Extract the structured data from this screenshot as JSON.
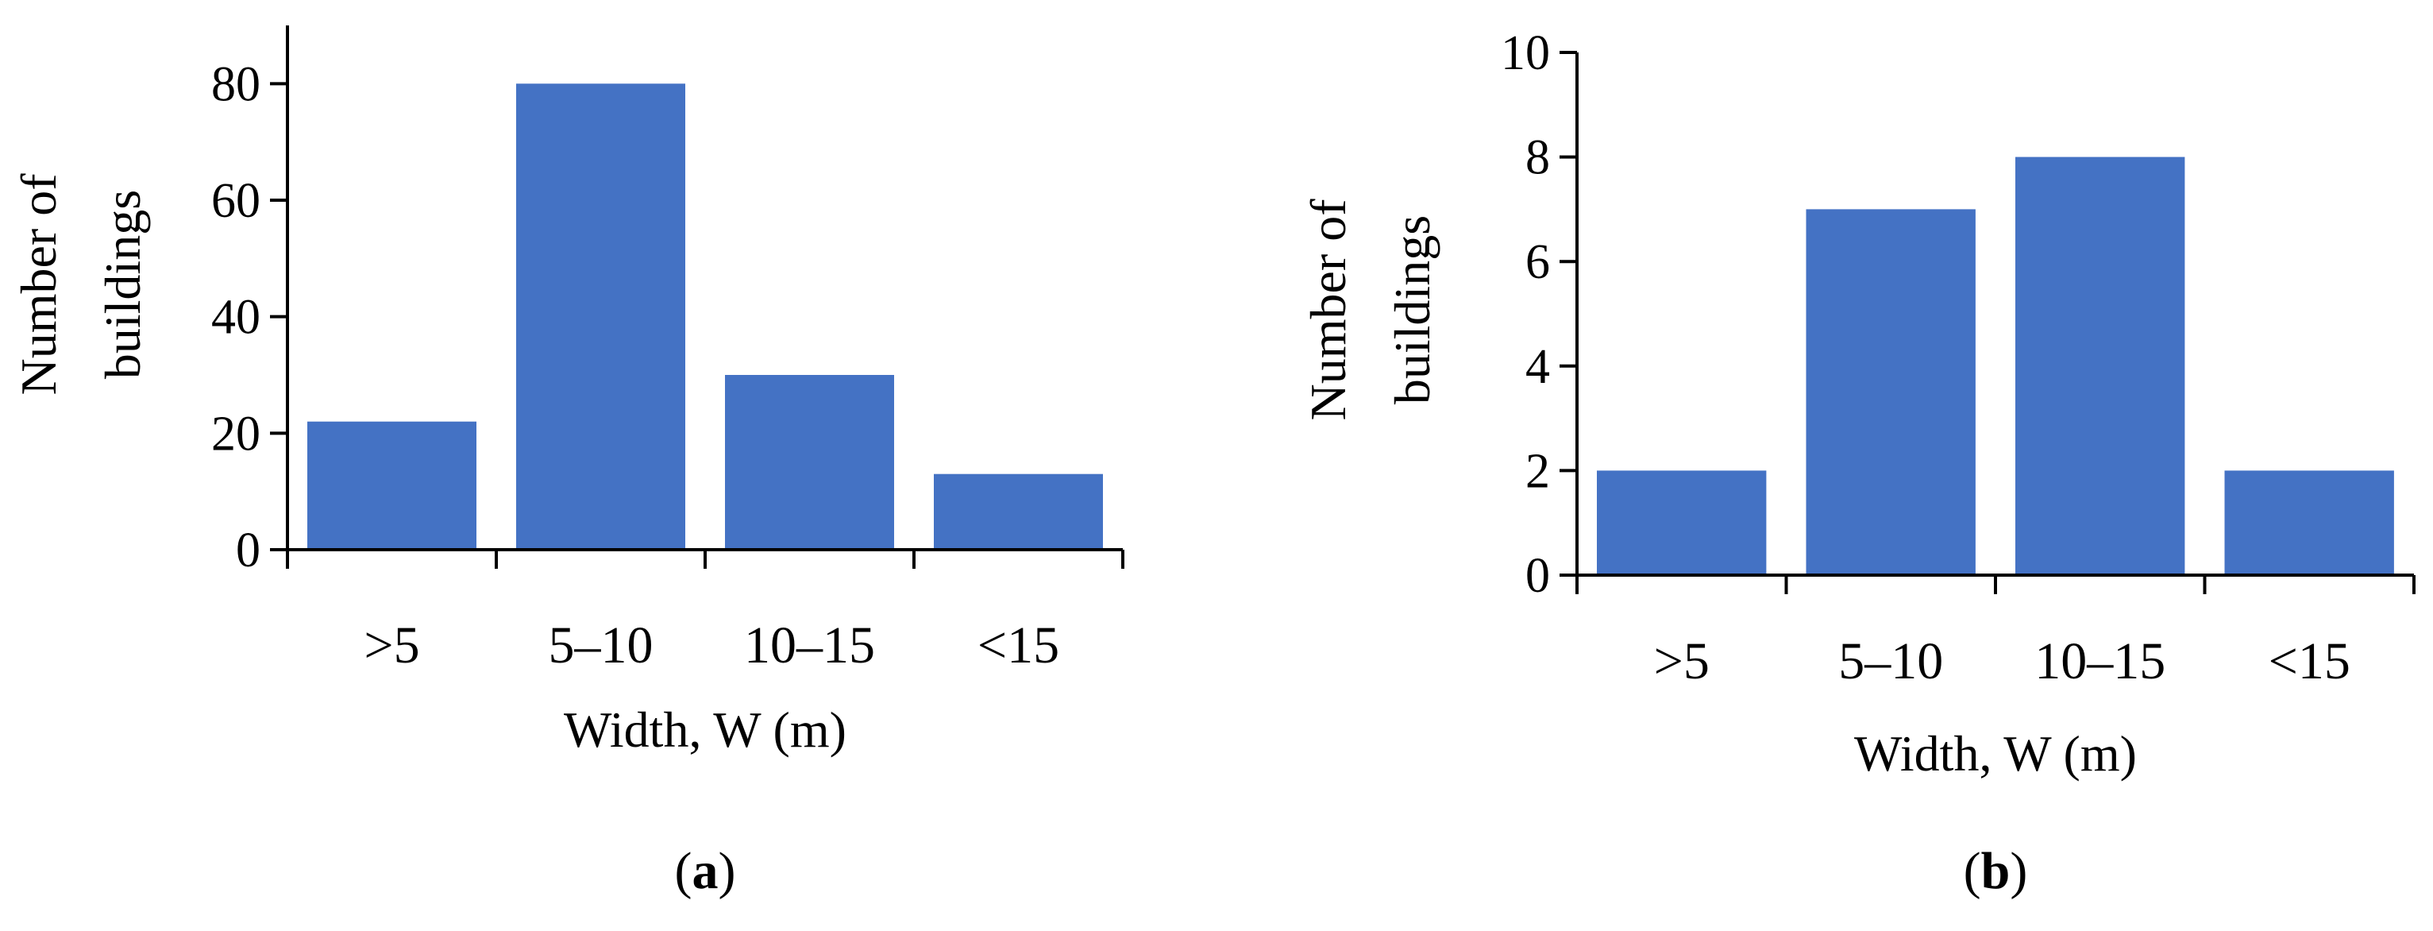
{
  "colors": {
    "bar": "#4472C4",
    "axis": "#000000",
    "background": "#FFFFFF"
  },
  "chart_data": [
    {
      "type": "bar",
      "panel_label": {
        "open": "(",
        "letter": "a",
        "close": ")"
      },
      "categories": [
        ">5",
        "5–10",
        "10–15",
        "<15"
      ],
      "values": [
        22,
        80,
        30,
        13
      ],
      "ylabel_lines": [
        "Number of",
        "buildings"
      ],
      "xlabel": "Width, W (m)",
      "ylim": [
        0,
        90
      ],
      "yticks": [
        0,
        20,
        40,
        60,
        80
      ],
      "grid": false,
      "legend": "none"
    },
    {
      "type": "bar",
      "panel_label": {
        "open": "(",
        "letter": "b",
        "close": ")"
      },
      "categories": [
        ">5",
        "5–10",
        "10–15",
        "<15"
      ],
      "values": [
        2,
        7,
        8,
        2
      ],
      "ylabel_lines": [
        "Number of",
        "buildings"
      ],
      "xlabel": "Width, W (m)",
      "ylim": [
        0,
        10
      ],
      "yticks": [
        0,
        2,
        4,
        6,
        8,
        10
      ],
      "grid": false,
      "legend": "none"
    }
  ]
}
